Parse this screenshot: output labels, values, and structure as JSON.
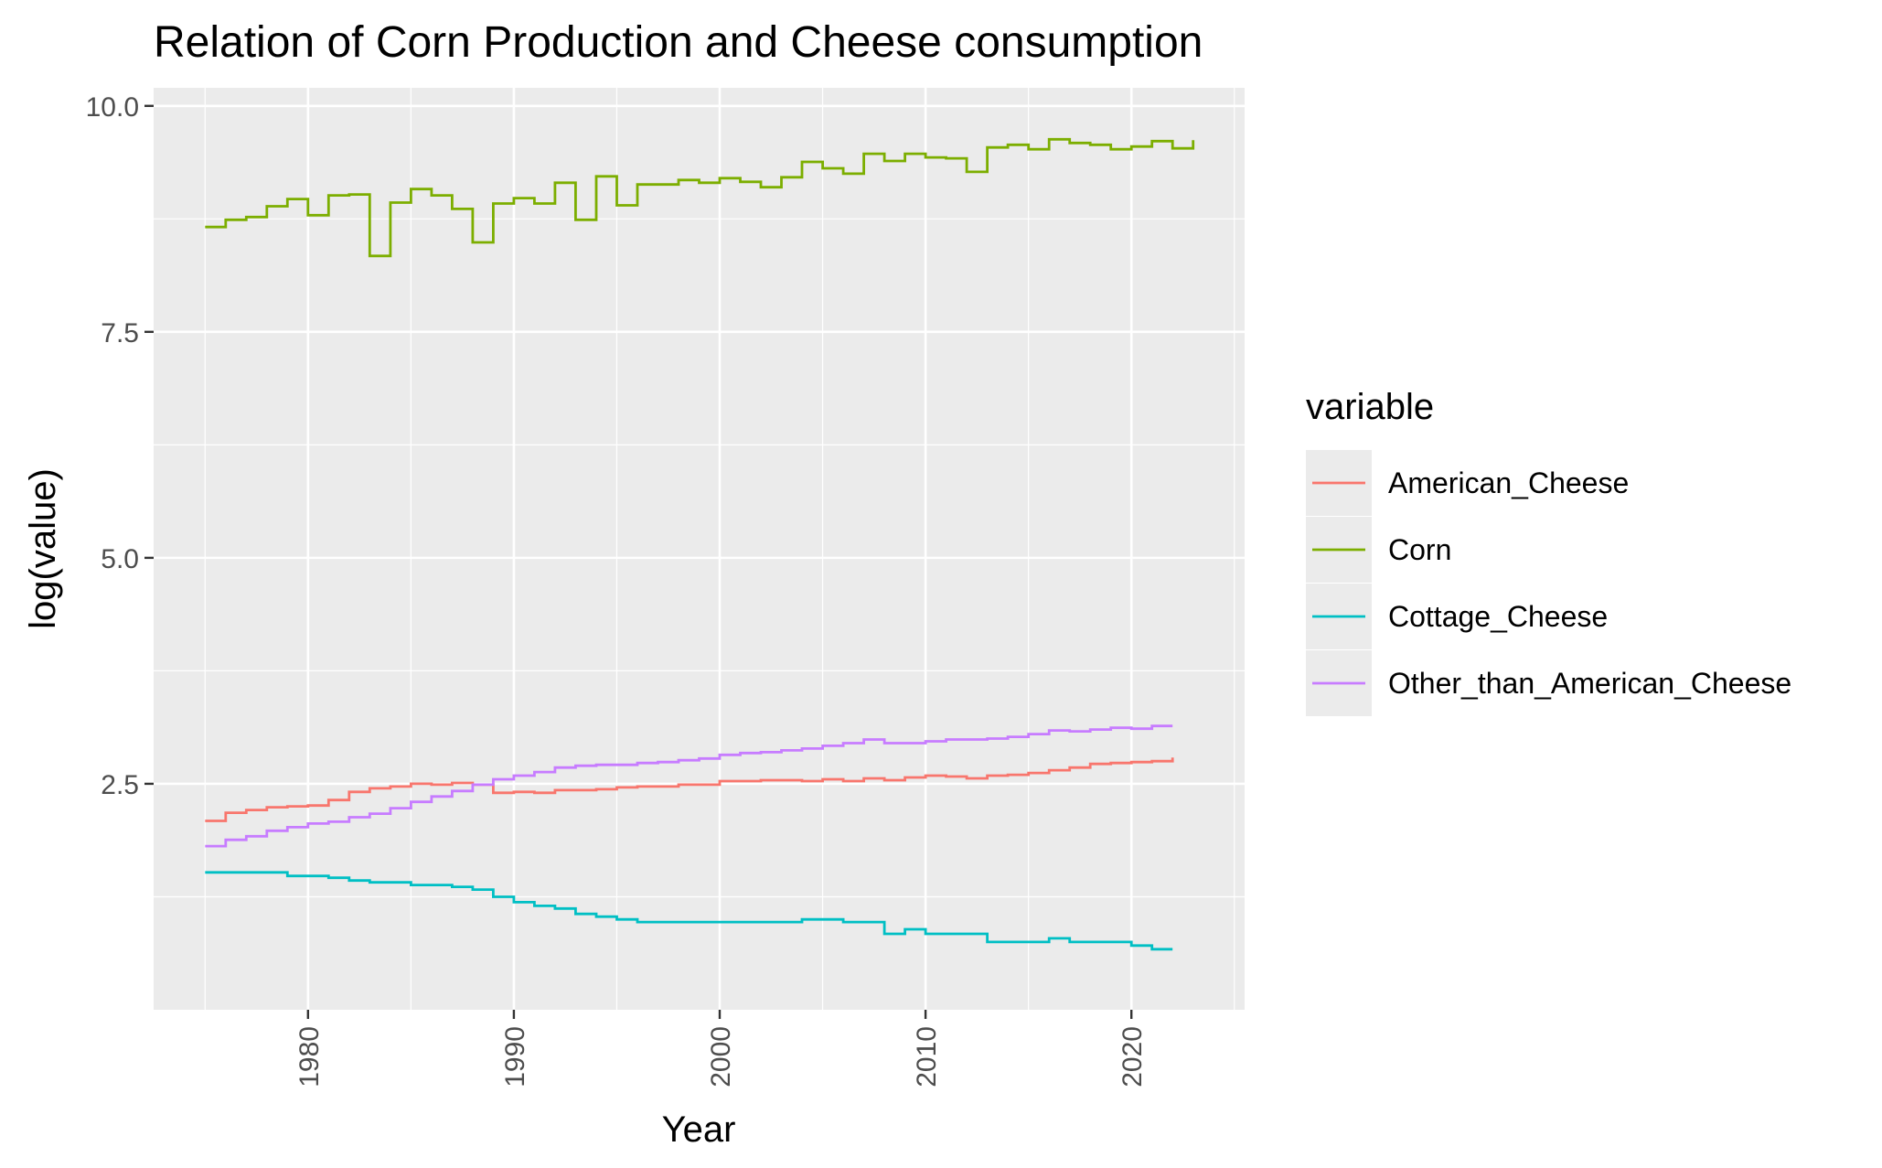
{
  "chart_data": {
    "type": "line",
    "step": true,
    "title": "Relation of Corn Production and Cheese consumption",
    "xlabel": "Year",
    "ylabel": "log(value)",
    "xlim": [
      1972.5,
      2025.5
    ],
    "ylim": [
      0.0,
      10.2
    ],
    "xticks": [
      1980,
      1990,
      2000,
      2010,
      2020
    ],
    "xtick_labels": [
      "1980",
      "1990",
      "2000",
      "2010",
      "2020"
    ],
    "yticks": [
      2.5,
      5.0,
      7.5,
      10.0
    ],
    "ytick_labels": [
      "2.5",
      "5.0",
      "7.5",
      "10.0"
    ],
    "grid": true,
    "legend": {
      "title": "variable",
      "position": "right"
    },
    "x": [
      1975,
      1976,
      1977,
      1978,
      1979,
      1980,
      1981,
      1982,
      1983,
      1984,
      1985,
      1986,
      1987,
      1988,
      1989,
      1990,
      1991,
      1992,
      1993,
      1994,
      1995,
      1996,
      1997,
      1998,
      1999,
      2000,
      2001,
      2002,
      2003,
      2004,
      2005,
      2006,
      2007,
      2008,
      2009,
      2010,
      2011,
      2012,
      2013,
      2014,
      2015,
      2016,
      2017,
      2018,
      2019,
      2020,
      2021,
      2022,
      2023
    ],
    "series": [
      {
        "name": "American_Cheese",
        "color": "#F8766D",
        "values": [
          2.09,
          2.18,
          2.21,
          2.24,
          2.25,
          2.26,
          2.32,
          2.41,
          2.45,
          2.47,
          2.5,
          2.49,
          2.51,
          2.49,
          2.4,
          2.41,
          2.4,
          2.43,
          2.43,
          2.44,
          2.46,
          2.47,
          2.47,
          2.49,
          2.49,
          2.53,
          2.53,
          2.54,
          2.54,
          2.53,
          2.55,
          2.53,
          2.56,
          2.54,
          2.57,
          2.59,
          2.58,
          2.56,
          2.59,
          2.6,
          2.62,
          2.65,
          2.68,
          2.72,
          2.73,
          2.74,
          2.75,
          2.79,
          null
        ]
      },
      {
        "name": "Corn",
        "color": "#7CAE00",
        "values": [
          8.66,
          8.74,
          8.77,
          8.89,
          8.97,
          8.79,
          9.01,
          9.02,
          8.34,
          8.93,
          9.08,
          9.01,
          8.86,
          8.49,
          8.92,
          8.98,
          8.92,
          9.15,
          8.74,
          9.22,
          8.9,
          9.13,
          9.13,
          9.18,
          9.15,
          9.2,
          9.16,
          9.1,
          9.21,
          9.38,
          9.31,
          9.25,
          9.47,
          9.39,
          9.47,
          9.43,
          9.42,
          9.27,
          9.54,
          9.57,
          9.52,
          9.63,
          9.59,
          9.57,
          9.52,
          9.55,
          9.61,
          9.53,
          9.62
        ]
      },
      {
        "name": "Cottage_Cheese",
        "color": "#00BFC4",
        "values": [
          1.52,
          1.52,
          1.52,
          1.52,
          1.48,
          1.48,
          1.46,
          1.43,
          1.41,
          1.41,
          1.38,
          1.38,
          1.36,
          1.33,
          1.25,
          1.19,
          1.15,
          1.12,
          1.06,
          1.03,
          1.0,
          0.97,
          0.97,
          0.97,
          0.97,
          0.97,
          0.97,
          0.97,
          0.97,
          1.0,
          1.0,
          0.97,
          0.97,
          0.84,
          0.89,
          0.84,
          0.84,
          0.84,
          0.75,
          0.75,
          0.75,
          0.79,
          0.75,
          0.75,
          0.75,
          0.71,
          0.67,
          0.67,
          null
        ]
      },
      {
        "name": "Other_than_American_Cheese",
        "color": "#C77CFF",
        "values": [
          1.81,
          1.88,
          1.92,
          1.98,
          2.02,
          2.06,
          2.08,
          2.13,
          2.17,
          2.23,
          2.3,
          2.36,
          2.42,
          2.49,
          2.55,
          2.59,
          2.63,
          2.68,
          2.7,
          2.71,
          2.71,
          2.73,
          2.74,
          2.76,
          2.78,
          2.82,
          2.84,
          2.85,
          2.87,
          2.89,
          2.92,
          2.95,
          2.99,
          2.95,
          2.95,
          2.97,
          2.99,
          2.99,
          3.0,
          3.02,
          3.05,
          3.09,
          3.08,
          3.1,
          3.12,
          3.11,
          3.14,
          3.14,
          null
        ]
      }
    ]
  }
}
